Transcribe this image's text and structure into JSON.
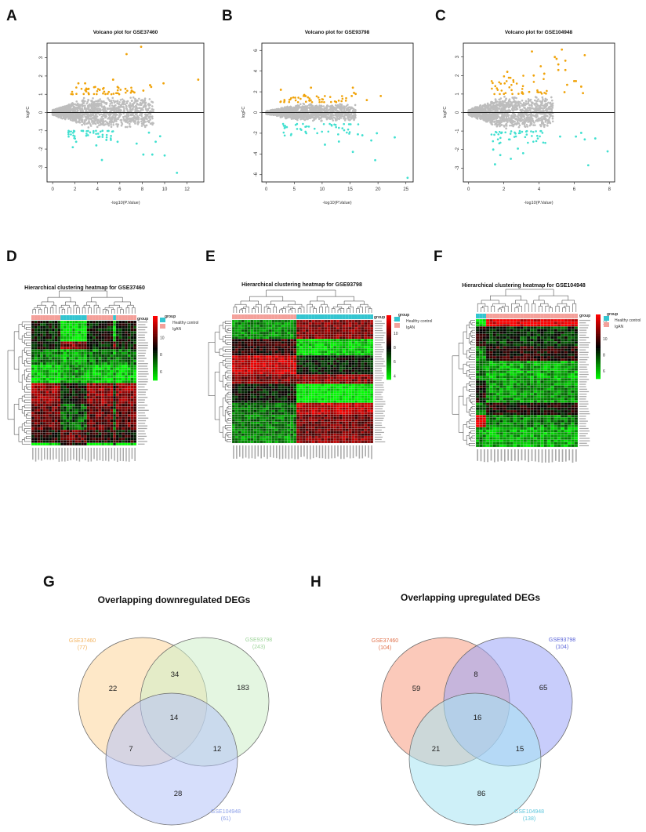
{
  "panel_labels": [
    "A",
    "B",
    "C",
    "D",
    "E",
    "F",
    "G",
    "H"
  ],
  "colors": {
    "up": "#f0a30a",
    "down": "#40e0d0",
    "ns": "#bdbdbd",
    "healthy": "#33c5d0",
    "igan": "#f4a09a",
    "heat_low": "#00ff00",
    "heat_mid": "#000000",
    "heat_high": "#ff0000"
  },
  "chart_data": [
    {
      "type": "scatter",
      "title": "Volcano plot for GSE37460",
      "xlabel": "-log10(P.Value)",
      "ylabel": "logFC",
      "xlim": [
        -0.5,
        13.5
      ],
      "ylim": [
        -3.8,
        3.8
      ],
      "xticks": [
        0,
        2,
        4,
        6,
        8,
        10,
        12
      ],
      "yticks": [
        -3,
        -2,
        -1,
        0,
        1,
        2,
        3
      ],
      "up_points": [
        [
          6.6,
          3.2
        ],
        [
          7.9,
          3.6
        ],
        [
          13,
          1.8
        ],
        [
          9.9,
          1.6
        ],
        [
          8.7,
          1.5
        ],
        [
          8.8,
          1.4
        ],
        [
          5.4,
          1.8
        ],
        [
          2.9,
          1.6
        ],
        [
          2.3,
          1.6
        ],
        [
          3.8,
          1.4
        ],
        [
          4.5,
          1.3
        ],
        [
          6.5,
          1.3
        ],
        [
          7.3,
          1.1
        ],
        [
          8.1,
          1.2
        ],
        [
          3.2,
          1.3
        ],
        [
          5.8,
          1.4
        ]
      ],
      "down_points": [
        [
          11.1,
          -3.3
        ],
        [
          4.4,
          -2.6
        ],
        [
          8.1,
          -2.3
        ],
        [
          8.9,
          -2.3
        ],
        [
          10,
          -2.35
        ],
        [
          1.8,
          -1.9
        ],
        [
          3.9,
          -1.8
        ],
        [
          7.5,
          -1.7
        ],
        [
          9.2,
          -1.6
        ],
        [
          9.6,
          -1.3
        ],
        [
          8.6,
          -1.1
        ],
        [
          2.1,
          -1.6
        ],
        [
          5.8,
          -1.6
        ],
        [
          4.8,
          -1.5
        ],
        [
          5.2,
          -1.5
        ]
      ],
      "up_cluster": {
        "x": [
          1.5,
          7.2
        ],
        "y": [
          1.0,
          1.4
        ]
      },
      "down_cluster": {
        "x": [
          1.4,
          6
        ],
        "y": [
          -1.0,
          -1.45
        ]
      }
    },
    {
      "type": "scatter",
      "title": "Volcano plot for GSE93798",
      "xlabel": "-log10(P.Value)",
      "ylabel": "logFC",
      "xlim": [
        -0.8,
        26.3
      ],
      "ylim": [
        -6.7,
        6.7
      ],
      "xticks": [
        0,
        5,
        10,
        15,
        20,
        25
      ],
      "yticks": [
        -6,
        -4,
        -2,
        0,
        2,
        4,
        6
      ],
      "up_points": [
        [
          2.6,
          2.2
        ],
        [
          8,
          2.4
        ],
        [
          15.5,
          2.4
        ],
        [
          15.7,
          1.9
        ],
        [
          16,
          1.8
        ],
        [
          20.5,
          1.6
        ],
        [
          18,
          1.2
        ],
        [
          15.3,
          1.6
        ],
        [
          6.8,
          1.7
        ]
      ],
      "down_points": [
        [
          25.3,
          -6.3
        ],
        [
          19.5,
          -4.6
        ],
        [
          15.5,
          -3.8
        ],
        [
          10.5,
          -3.1
        ],
        [
          23,
          -2.4
        ],
        [
          18.8,
          -2.7
        ],
        [
          19.8,
          -2
        ],
        [
          13,
          -2.8
        ],
        [
          17.2,
          -2.2
        ],
        [
          16.4,
          -2.1
        ]
      ],
      "up_cluster": {
        "x": [
          2.5,
          15
        ],
        "y": [
          1.0,
          1.6
        ]
      },
      "down_cluster": {
        "x": [
          3,
          17
        ],
        "y": [
          -1.1,
          -2.3
        ]
      }
    },
    {
      "type": "scatter",
      "title": "Volcano plot for GSE104948",
      "xlabel": "-log10(P.Value)",
      "ylabel": "logFC",
      "xlim": [
        -0.3,
        8.3
      ],
      "ylim": [
        -3.75,
        3.75
      ],
      "xticks": [
        0,
        2,
        4,
        6,
        8
      ],
      "yticks": [
        -3,
        -2,
        -1,
        0,
        1,
        2,
        3
      ],
      "up_points": [
        [
          3.6,
          3.3
        ],
        [
          5.3,
          3.4
        ],
        [
          6.6,
          3.1
        ],
        [
          4.9,
          3.0
        ],
        [
          5.0,
          2.9
        ],
        [
          5.1,
          2.6
        ],
        [
          5.5,
          2.8
        ],
        [
          5.5,
          2.3
        ],
        [
          5.1,
          2.3
        ],
        [
          4.3,
          2.1
        ],
        [
          4.1,
          2.5
        ],
        [
          6.0,
          1.7
        ],
        [
          6.1,
          1.7
        ],
        [
          5.6,
          1.5
        ],
        [
          6.4,
          1.4
        ],
        [
          6.5,
          1.05
        ],
        [
          5.45,
          1.1
        ],
        [
          3.7,
          2.0
        ],
        [
          2.2,
          2.2
        ]
      ],
      "down_points": [
        [
          7.9,
          -2.1
        ],
        [
          6.8,
          -2.85
        ],
        [
          1.5,
          -2.8
        ],
        [
          2.4,
          -2.5
        ],
        [
          3.1,
          -2.2
        ],
        [
          1.4,
          -2
        ],
        [
          2.8,
          -1.95
        ],
        [
          7.2,
          -1.4
        ],
        [
          6.6,
          -1.45
        ],
        [
          6.1,
          -1.3
        ],
        [
          5.2,
          -1.3
        ],
        [
          6.4,
          -1.1
        ],
        [
          1.8,
          -2.3
        ]
      ],
      "up_cluster": {
        "x": [
          1.3,
          4.5
        ],
        "y": [
          1.0,
          2.1
        ]
      },
      "down_cluster": {
        "x": [
          1.3,
          4.5
        ],
        "y": [
          -1.0,
          -1.7
        ]
      }
    },
    {
      "type": "heatmap",
      "title": "Hierarchical clustering heatmap for GSE37460",
      "colorbar_ticks": [
        12,
        10,
        8,
        6
      ],
      "colorbar_range": [
        5,
        12.5
      ],
      "group_label": "group",
      "legend_title": "group",
      "legend": [
        "Healthy control",
        "IgAN"
      ]
    },
    {
      "type": "heatmap",
      "title": "Hierarchical clustering heatmap for GSE93798",
      "colorbar_ticks": [
        12,
        10,
        8,
        6,
        4
      ],
      "colorbar_range": [
        3.5,
        12.5
      ],
      "group_label": "group",
      "legend_title": "group",
      "legend": [
        "Healthy control",
        "IgAN"
      ]
    },
    {
      "type": "heatmap",
      "title": "Hierarchical clustering heatmap for GSE104948",
      "colorbar_ticks": [
        12,
        10,
        8,
        6
      ],
      "colorbar_range": [
        5,
        13
      ],
      "group_label": "group",
      "legend_title": "group",
      "legend": [
        "Healthy control",
        "IgAN"
      ]
    },
    {
      "type": "venn",
      "title": "Overlapping downregulated DEGs",
      "sets": [
        {
          "name": "GSE37460",
          "count": "(77)",
          "color": "#f3b25d",
          "fill": "#fdd59a"
        },
        {
          "name": "GSE93798",
          "count": "(243)",
          "color": "#9ed49a",
          "fill": "#cdeec9"
        },
        {
          "name": "GSE104948",
          "count": "(61)",
          "color": "#8a9ee8",
          "fill": "#b5c2f7"
        }
      ],
      "regions": {
        "only_A": "22",
        "A_B": "34",
        "only_B": "183",
        "A_B_C": "14",
        "A_C": "7",
        "B_C": "12",
        "only_C": "28"
      }
    },
    {
      "type": "venn",
      "title": "Overlapping upregulated DEGs",
      "sets": [
        {
          "name": "GSE37460",
          "count": "(104)",
          "color": "#e0704a",
          "fill": "#f79c82"
        },
        {
          "name": "GSE93798",
          "count": "(104)",
          "color": "#5a64d8",
          "fill": "#9aa4f8"
        },
        {
          "name": "GSE104948",
          "count": "(138)",
          "color": "#5ec6dc",
          "fill": "#a6e4f2"
        }
      ],
      "regions": {
        "only_A": "59",
        "A_B": "8",
        "only_B": "65",
        "A_B_C": "16",
        "A_C": "21",
        "B_C": "15",
        "only_C": "86"
      }
    }
  ]
}
